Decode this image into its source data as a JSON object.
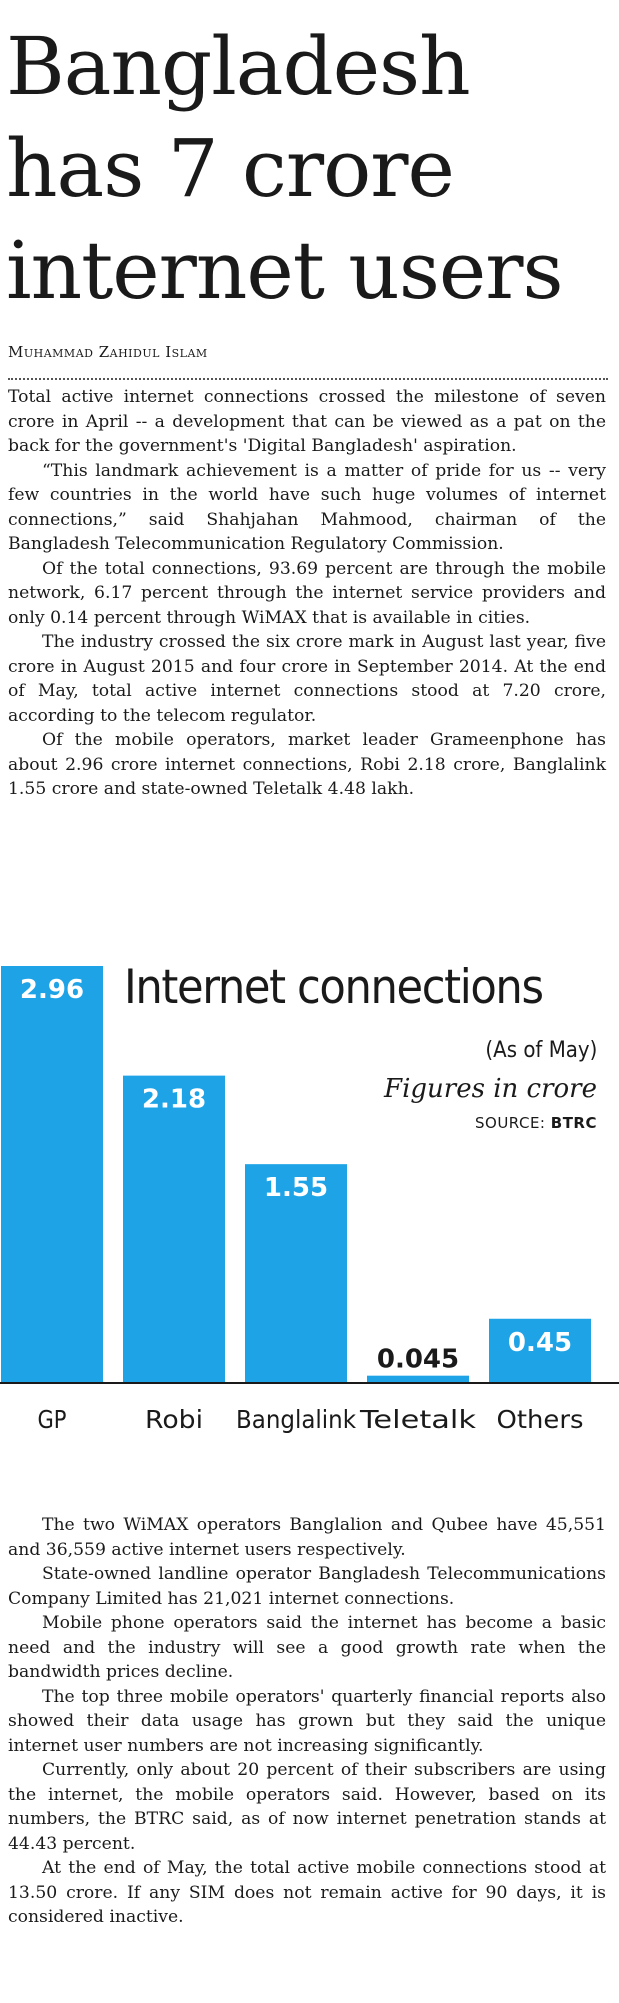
{
  "article": {
    "headline_lines": [
      "Bangladesh",
      "has 7 crore",
      "internet users"
    ],
    "byline": "Muhammad Zahidul Islam",
    "paragraphs_top": [
      "Total active internet connections crossed the milestone of seven crore in April -- a development that can be viewed as a pat on the back for the government's 'Digital Bangladesh' aspiration.",
      "“This landmark achievement is a matter of pride for us -- very few countries in the world have such huge volumes of internet connections,” said Shahjahan Mahmood, chairman of the Bangladesh Telecommunication Regulatory Commission.",
      "Of the total connections, 93.69 percent are through the mobile network, 6.17 percent through the internet service providers and only 0.14 percent through WiMAX that is available in cities.",
      "The industry crossed the six crore mark in August last year, five crore in August 2015 and four crore in September 2014. At the end of May, total active internet connections stood at 7.20 crore, according to the telecom regulator.",
      "Of the mobile operators, market leader Grameenphone has about 2.96 crore internet connections, Robi 2.18 crore, Banglalink 1.55 crore and state-owned Teletalk 4.48 lakh."
    ],
    "paragraphs_bottom": [
      "The two WiMAX operators Banglalion and Qubee have 45,551 and 36,559 active internet users respectively.",
      "State-owned landline operator Bangladesh Telecommunications Company Limited has 21,021 internet connections.",
      "Mobile phone operators said the internet has become a basic need and the industry will see a good growth rate when the bandwidth prices decline.",
      "The top three mobile operators' quarterly financial reports also showed their data usage has grown but they said the unique internet user numbers are not increasing significantly.",
      "Currently, only about 20 percent of their subscribers are using the internet, the mobile operators said. However, based on its numbers, the BTRC said, as of now internet penetration stands at 44.43 percent.",
      "At the end of May, the total active mobile connections stood at 13.50 crore. If any SIM does not remain active for 90 days, it is considered inactive."
    ]
  },
  "chart_data": {
    "type": "bar",
    "title": "Internet connections",
    "subtitle": "(As of May)",
    "units_note": "Figures in crore",
    "source_label": "SOURCE:",
    "source_name": "BTRC",
    "categories": [
      "GP",
      "Robi",
      "Banglalink",
      "Teletalk",
      "Others"
    ],
    "values": [
      2.96,
      2.18,
      1.55,
      0.045,
      0.45
    ],
    "value_labels": [
      "2.96",
      "2.18",
      "1.55",
      "0.045",
      "0.45"
    ],
    "bar_color": "#1ea3e6",
    "grid": false,
    "legend": "none"
  }
}
